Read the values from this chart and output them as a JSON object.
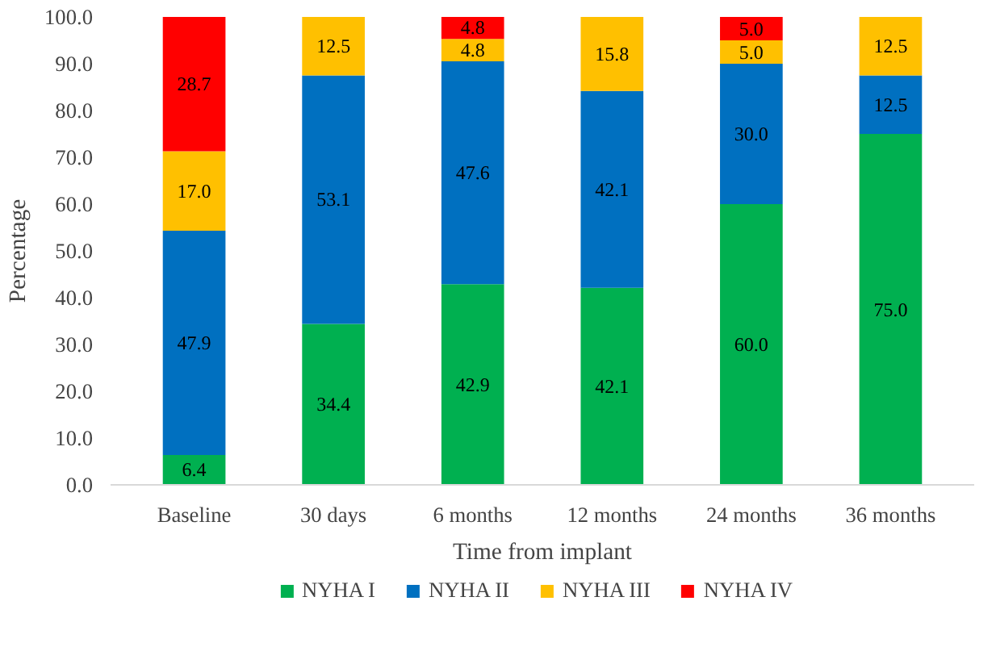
{
  "chart_data": {
    "type": "bar",
    "stacked": true,
    "xlabel": "Time from implant",
    "ylabel": "Percentage",
    "categories": [
      "Baseline",
      "30 days",
      "6 months",
      "12 months",
      "24 months",
      "36 months"
    ],
    "series": [
      {
        "name": "NYHA I",
        "color": "#00b050",
        "values": [
          6.4,
          34.4,
          42.9,
          42.1,
          60.0,
          75.0
        ],
        "value_labels": [
          "6.4",
          "34.4",
          "42.9",
          "42.1",
          "60.0",
          "75.0"
        ]
      },
      {
        "name": "NYHA II",
        "color": "#0070c0",
        "values": [
          47.9,
          53.1,
          47.6,
          42.1,
          30.0,
          12.5
        ],
        "value_labels": [
          "47.9",
          "53.1",
          "47.6",
          "42.1",
          "30.0",
          "12.5"
        ]
      },
      {
        "name": "NYHA III",
        "color": "#ffc000",
        "values": [
          17.0,
          12.5,
          4.8,
          15.8,
          5.0,
          12.5
        ],
        "value_labels": [
          "17.0",
          "12.5",
          "4.8",
          "15.8",
          "5.0",
          "12.5"
        ]
      },
      {
        "name": "NYHA IV",
        "color": "#ff0000",
        "values": [
          28.7,
          null,
          4.8,
          null,
          5.0,
          null
        ],
        "value_labels": [
          "28.7",
          null,
          "4.8",
          null,
          "5.0",
          null
        ]
      }
    ],
    "ylim": [
      0,
      100
    ],
    "yticks": [
      {
        "value": 0,
        "label": "0.0"
      },
      {
        "value": 10,
        "label": "10.0"
      },
      {
        "value": 20,
        "label": "20.0"
      },
      {
        "value": 30,
        "label": "30.0"
      },
      {
        "value": 40,
        "label": "40.0"
      },
      {
        "value": 50,
        "label": "50.0"
      },
      {
        "value": 60,
        "label": "60.0"
      },
      {
        "value": 70,
        "label": "70.0"
      },
      {
        "value": 80,
        "label": "80.0"
      },
      {
        "value": 90,
        "label": "90.0"
      },
      {
        "value": 100,
        "label": "100.0"
      }
    ],
    "grid": false,
    "legend": "bottom"
  }
}
